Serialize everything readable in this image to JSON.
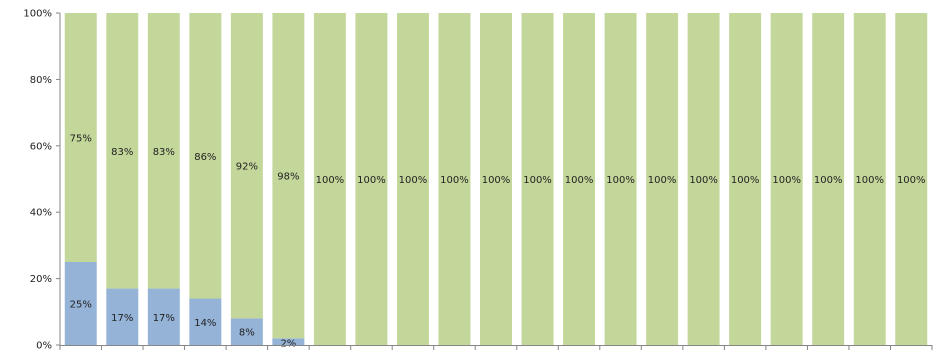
{
  "chart_data": {
    "type": "bar",
    "stacked": true,
    "percent_stacked": true,
    "ylim": [
      0,
      100
    ],
    "y_ticks": [
      "0%",
      "20%",
      "40%",
      "60%",
      "80%",
      "100%"
    ],
    "y_tick_values": [
      0,
      20,
      40,
      60,
      80,
      100
    ],
    "categories": [
      "",
      "",
      "",
      "",
      "",
      "",
      "",
      "",
      "",
      "",
      "",
      "",
      "",
      "",
      "",
      "",
      "",
      "",
      "",
      "",
      ""
    ],
    "series": [
      {
        "color": "#95b3d7",
        "values": [
          25,
          17,
          17,
          14,
          8,
          2,
          0,
          0,
          0,
          0,
          0,
          0,
          0,
          0,
          0,
          0,
          0,
          0,
          0,
          0,
          0
        ],
        "labels": [
          "25%",
          "17%",
          "17%",
          "14%",
          "8%",
          "2%",
          "",
          "",
          "",
          "",
          "",
          "",
          "",
          "",
          "",
          "",
          "",
          "",
          "",
          "",
          ""
        ]
      },
      {
        "color": "#c4d79b",
        "values": [
          75,
          83,
          83,
          86,
          92,
          98,
          100,
          100,
          100,
          100,
          100,
          100,
          100,
          100,
          100,
          100,
          100,
          100,
          100,
          100,
          100
        ],
        "labels": [
          "75%",
          "83%",
          "83%",
          "86%",
          "92%",
          "98%",
          "100%",
          "100%",
          "100%",
          "100%",
          "100%",
          "100%",
          "100%",
          "100%",
          "100%",
          "100%",
          "100%",
          "100%",
          "100%",
          "100%",
          "100%"
        ]
      }
    ],
    "grid": false,
    "legend": "none"
  }
}
